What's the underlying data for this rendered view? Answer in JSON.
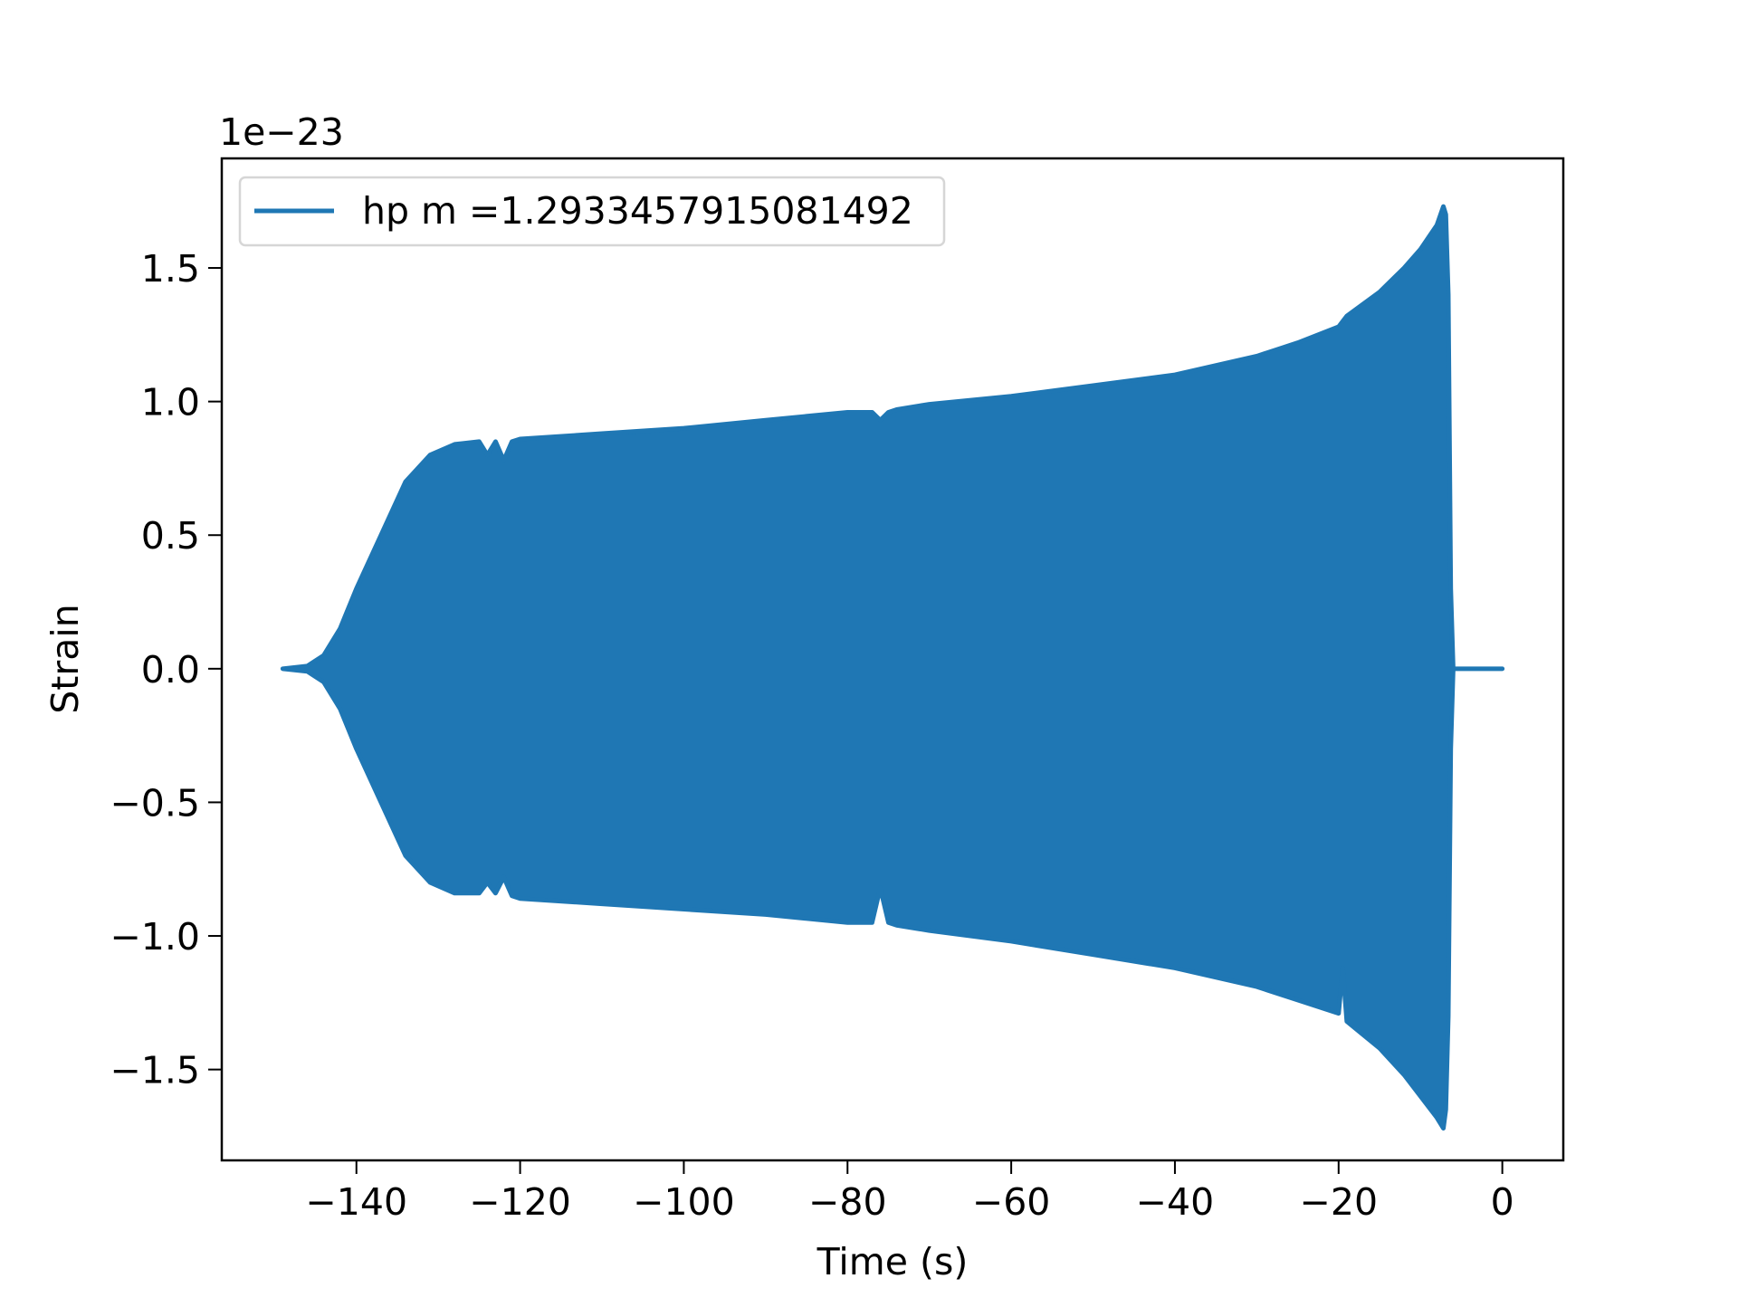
{
  "chart_data": {
    "type": "line",
    "title": "",
    "xlabel": "Time (s)",
    "ylabel": "Strain",
    "y_offset_label": "1e−23",
    "xlim": [
      -156.45,
      7.45
    ],
    "ylim": [
      -1.84,
      1.91
    ],
    "x_ticks": [
      -140,
      -120,
      -100,
      -80,
      -60,
      -40,
      -20,
      0
    ],
    "x_tick_labels": [
      "−140",
      "−120",
      "−100",
      "−80",
      "−60",
      "−40",
      "−20",
      "0"
    ],
    "y_ticks": [
      -1.5,
      -1.0,
      -0.5,
      0.0,
      0.5,
      1.0,
      1.5
    ],
    "y_tick_labels": [
      "−1.5",
      "−1.0",
      "−0.5",
      "0.0",
      "0.5",
      "1.0",
      "1.5"
    ],
    "grid": false,
    "legend_position": "top-left",
    "series": [
      {
        "name": "hp m =1.2933457915081492",
        "color": "#1f77b4",
        "envelope_t": [
          -149,
          -146,
          -144,
          -142,
          -140,
          -137,
          -134,
          -131,
          -128,
          -125,
          -124,
          -123,
          -122,
          -121,
          -120,
          -110,
          -100,
          -90,
          -80,
          -77,
          -76,
          -75,
          -74,
          -70,
          -60,
          -50,
          -40,
          -30,
          -25,
          -20,
          -19.5,
          -19,
          -15,
          -12,
          -10,
          -8,
          -7.2,
          -6.9,
          -6.6,
          -6.3,
          -6,
          0
        ],
        "envelope_upper": [
          0,
          0.01,
          0.05,
          0.15,
          0.3,
          0.5,
          0.7,
          0.8,
          0.84,
          0.85,
          0.8,
          0.85,
          0.78,
          0.85,
          0.86,
          0.88,
          0.9,
          0.93,
          0.96,
          0.96,
          0.93,
          0.96,
          0.97,
          0.99,
          1.02,
          1.06,
          1.1,
          1.17,
          1.22,
          1.28,
          1.3,
          1.32,
          1.41,
          1.5,
          1.57,
          1.66,
          1.73,
          1.7,
          1.4,
          0.3,
          0.0,
          0.0
        ],
        "envelope_lower": [
          0,
          -0.01,
          -0.05,
          -0.15,
          -0.3,
          -0.5,
          -0.7,
          -0.8,
          -0.84,
          -0.84,
          -0.8,
          -0.84,
          -0.78,
          -0.85,
          -0.86,
          -0.88,
          -0.9,
          -0.92,
          -0.95,
          -0.95,
          -0.82,
          -0.95,
          -0.96,
          -0.98,
          -1.02,
          -1.07,
          -1.12,
          -1.19,
          -1.24,
          -1.29,
          -1.12,
          -1.32,
          -1.42,
          -1.52,
          -1.6,
          -1.68,
          -1.72,
          -1.65,
          -1.3,
          -0.3,
          0.0,
          0.0
        ]
      }
    ]
  }
}
